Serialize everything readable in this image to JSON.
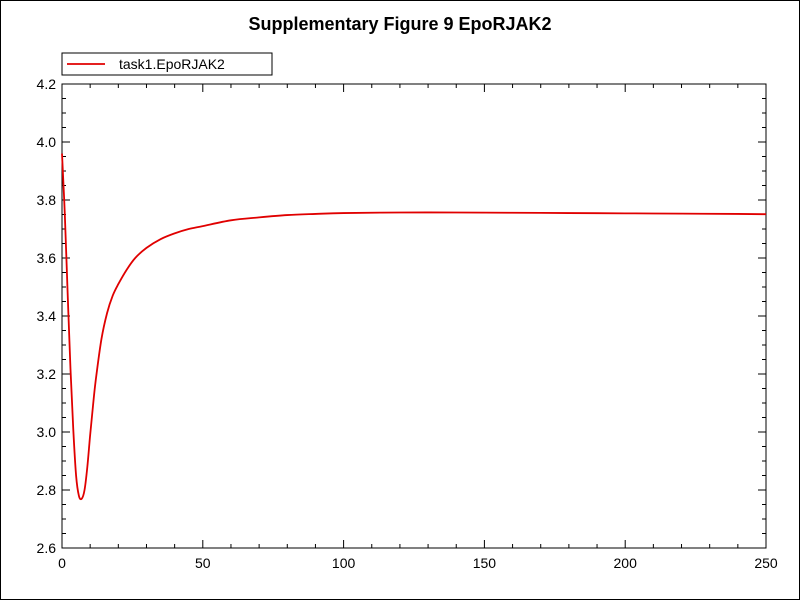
{
  "chart_data": {
    "type": "line",
    "title": "Supplementary Figure 9 EpoRJAK2",
    "xlabel": "",
    "ylabel": "",
    "xlim": [
      0,
      250
    ],
    "ylim": [
      2.6,
      4.2
    ],
    "x_ticks": [
      "0",
      "50",
      "100",
      "150",
      "200",
      "250"
    ],
    "y_ticks": [
      "2.6",
      "2.8",
      "3.0",
      "3.2",
      "3.4",
      "3.6",
      "3.8",
      "4.0",
      "4.2"
    ],
    "legend_position": "top-left",
    "grid": false,
    "series": [
      {
        "name": "task1.EpoRJAK2",
        "color": "#e00000",
        "x": [
          0,
          1,
          2,
          3,
          4,
          5,
          6,
          7,
          8,
          9,
          10,
          11,
          12,
          14,
          16,
          18,
          20,
          23,
          26,
          30,
          35,
          40,
          45,
          50,
          60,
          70,
          80,
          90,
          100,
          120,
          140,
          160,
          180,
          200,
          220,
          240,
          250
        ],
        "y": [
          3.96,
          3.75,
          3.48,
          3.22,
          3.01,
          2.85,
          2.78,
          2.77,
          2.8,
          2.88,
          2.99,
          3.09,
          3.18,
          3.32,
          3.41,
          3.47,
          3.51,
          3.56,
          3.6,
          3.635,
          3.665,
          3.685,
          3.7,
          3.71,
          3.73,
          3.74,
          3.748,
          3.752,
          3.755,
          3.757,
          3.757,
          3.756,
          3.755,
          3.754,
          3.753,
          3.752,
          3.751
        ]
      }
    ]
  }
}
